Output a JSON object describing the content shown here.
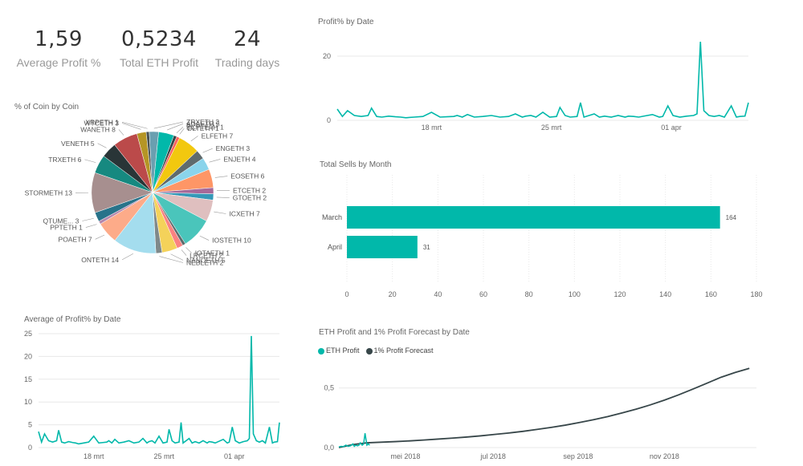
{
  "colors": {
    "teal": "#01B8AA",
    "dark": "#374649",
    "axis": "#666666",
    "grid": "#E8E8E8"
  },
  "kpis": [
    {
      "value": "1,59",
      "label": "Average Profit %"
    },
    {
      "value": "0,5234",
      "label": "Total ETH Profit"
    },
    {
      "value": "24",
      "label": "Trading days"
    }
  ],
  "pie": {
    "title": "% of Coin by Coin",
    "labels": [
      "ADAETH 5",
      "BCPTETH 1",
      "DLTETH 1",
      "ELFETH 7",
      "ENGETH 3",
      "ENJETH 4",
      "EOSETH 6",
      "ETCETH 2",
      "GTOETH 2",
      "ICXETH 7",
      "IOSTETH 10",
      "IOTAETH 1",
      "LRCETH 2",
      "NANOETH 5",
      "NEBLETH 2",
      "ONTETH 14",
      "POAETH 7",
      "PPTETH 1",
      "QTUME... 3",
      "STORMETH 13",
      "TRXETH 6",
      "VENETH 5",
      "WANETH 8",
      "WTCETH 3",
      "XRPETH 1",
      "ZRXETH 3"
    ]
  },
  "chart_data": [
    {
      "type": "line",
      "title": "Profit% by Date",
      "x_ticks": [
        "18 mrt",
        "25 mrt",
        "01 apr"
      ],
      "y_ticks": [
        "0",
        "20"
      ],
      "ylim": [
        0,
        26
      ],
      "series": [
        {
          "x": [
            0,
            0.3,
            0.6,
            1,
            1.4,
            1.8,
            2,
            2.3,
            2.6,
            3,
            3.4,
            3.7,
            4,
            4.5,
            5,
            5.5,
            6,
            6.4,
            6.8,
            7,
            7.3,
            7.6,
            8,
            8.5,
            9,
            9.5,
            10,
            10.4,
            10.8,
            11,
            11.3,
            11.6,
            12,
            12.4,
            12.8,
            13,
            13.3,
            13.6,
            14,
            14.2,
            14.4,
            14.7,
            15,
            15.3,
            15.6,
            16,
            16.4,
            16.8,
            17,
            17.3,
            17.6,
            18,
            18.4,
            18.8,
            19,
            19.3,
            19.6,
            20,
            20.4,
            20.8,
            21,
            21.2,
            21.4,
            21.7,
            22,
            22.3,
            22.6,
            23,
            23.3,
            23.5,
            23.8,
            24
          ],
          "y": [
            3.5,
            1.2,
            3,
            1.5,
            1.2,
            1.5,
            3.8,
            1.2,
            1,
            1.3,
            1.1,
            1,
            0.8,
            1,
            1.2,
            2.5,
            1,
            1.1,
            1.2,
            1.5,
            1,
            1.8,
            1,
            1.2,
            1.5,
            1,
            1.2,
            2,
            1,
            1.3,
            1.5,
            1,
            2.5,
            1,
            1.2,
            4,
            1.5,
            1,
            1.2,
            5.5,
            1,
            1.5,
            2,
            1,
            1.3,
            1,
            1.5,
            1,
            1.3,
            1.2,
            1,
            1.4,
            1.8,
            1,
            1.2,
            4.5,
            1.5,
            1,
            1.3,
            1.5,
            2,
            24.5,
            3,
            1.5,
            1.2,
            1.5,
            1,
            4.5,
            1,
            1.2,
            1.3,
            5.5
          ]
        }
      ]
    },
    {
      "type": "bar",
      "title": "Total Sells by Month",
      "categories": [
        "March",
        "April"
      ],
      "values": [
        164,
        31
      ],
      "x_ticks": [
        "0",
        "20",
        "40",
        "60",
        "80",
        "100",
        "120",
        "140",
        "160",
        "180"
      ],
      "xlim": [
        0,
        180
      ]
    },
    {
      "type": "line",
      "title": "Average of Profit% by Date",
      "x_ticks": [
        "18 mrt",
        "25 mrt",
        "01 apr"
      ],
      "y_ticks": [
        "0",
        "5",
        "10",
        "15",
        "20",
        "25"
      ],
      "ylim": [
        0,
        25
      ],
      "series": [
        {
          "x": [
            0,
            0.3,
            0.6,
            1,
            1.4,
            1.8,
            2,
            2.3,
            2.6,
            3,
            3.4,
            3.7,
            4,
            4.5,
            5,
            5.5,
            6,
            6.4,
            6.8,
            7,
            7.3,
            7.6,
            8,
            8.5,
            9,
            9.5,
            10,
            10.4,
            10.8,
            11,
            11.3,
            11.6,
            12,
            12.4,
            12.8,
            13,
            13.3,
            13.6,
            14,
            14.2,
            14.4,
            14.7,
            15,
            15.3,
            15.6,
            16,
            16.4,
            16.8,
            17,
            17.3,
            17.6,
            18,
            18.4,
            18.8,
            19,
            19.3,
            19.6,
            20,
            20.4,
            20.8,
            21,
            21.2,
            21.4,
            21.7,
            22,
            22.3,
            22.6,
            23,
            23.3,
            23.5,
            23.8,
            24
          ],
          "y": [
            3.5,
            1.2,
            3,
            1.5,
            1.2,
            1.5,
            3.8,
            1.2,
            1,
            1.3,
            1.1,
            1,
            0.8,
            1,
            1.2,
            2.5,
            1,
            1.1,
            1.2,
            1.5,
            1,
            1.8,
            1,
            1.2,
            1.5,
            1,
            1.2,
            2,
            1,
            1.3,
            1.5,
            1,
            2.5,
            1,
            1.2,
            4,
            1.5,
            1,
            1.2,
            5.5,
            1,
            1.5,
            2,
            1,
            1.3,
            1,
            1.5,
            1,
            1.3,
            1.2,
            1,
            1.4,
            1.8,
            1,
            1.2,
            4.5,
            1.5,
            1,
            1.3,
            1.5,
            2,
            24.5,
            3,
            1.5,
            1.2,
            1.5,
            1,
            4.5,
            1,
            1.2,
            1.3,
            5.5
          ]
        }
      ]
    },
    {
      "type": "line",
      "title": "ETH Profit and 1% Profit Forecast by Date",
      "legend": [
        "ETH Profit",
        "1% Profit Forecast"
      ],
      "x_ticks": [
        "mei 2018",
        "jul 2018",
        "sep 2018",
        "nov 2018"
      ],
      "y_ticks": [
        "0,0",
        "0,5"
      ],
      "ylim": [
        0,
        0.7
      ],
      "series": [
        {
          "name": "ETH Profit",
          "x": [
            0,
            0.5,
            1,
            1.5,
            2,
            2.5,
            3,
            3.3,
            3.6,
            4,
            4.3,
            4.6,
            5,
            5.3,
            5.6,
            6,
            6.3,
            6.6
          ],
          "y": [
            0.005,
            0.01,
            0.008,
            0.02,
            0.01,
            0.015,
            0.03,
            0.01,
            0.02,
            0.015,
            0.02,
            0.04,
            0.02,
            0.03,
            0.12,
            0.02,
            0.03,
            0.02
          ]
        },
        {
          "name": "1% Profit Forecast",
          "x": [
            0,
            10,
            20,
            30,
            40,
            50,
            60,
            70,
            80,
            90,
            100,
            110,
            120,
            130,
            140,
            150,
            160,
            170,
            180,
            190,
            200,
            210,
            220,
            230,
            240,
            250,
            260,
            270,
            280,
            290
          ],
          "y": [
            0.0,
            0.025,
            0.04,
            0.045,
            0.05,
            0.056,
            0.063,
            0.071,
            0.079,
            0.088,
            0.098,
            0.11,
            0.122,
            0.136,
            0.152,
            0.169,
            0.188,
            0.21,
            0.234,
            0.26,
            0.29,
            0.322,
            0.358,
            0.398,
            0.442,
            0.49,
            0.54,
            0.59,
            0.63,
            0.665
          ]
        }
      ]
    }
  ]
}
